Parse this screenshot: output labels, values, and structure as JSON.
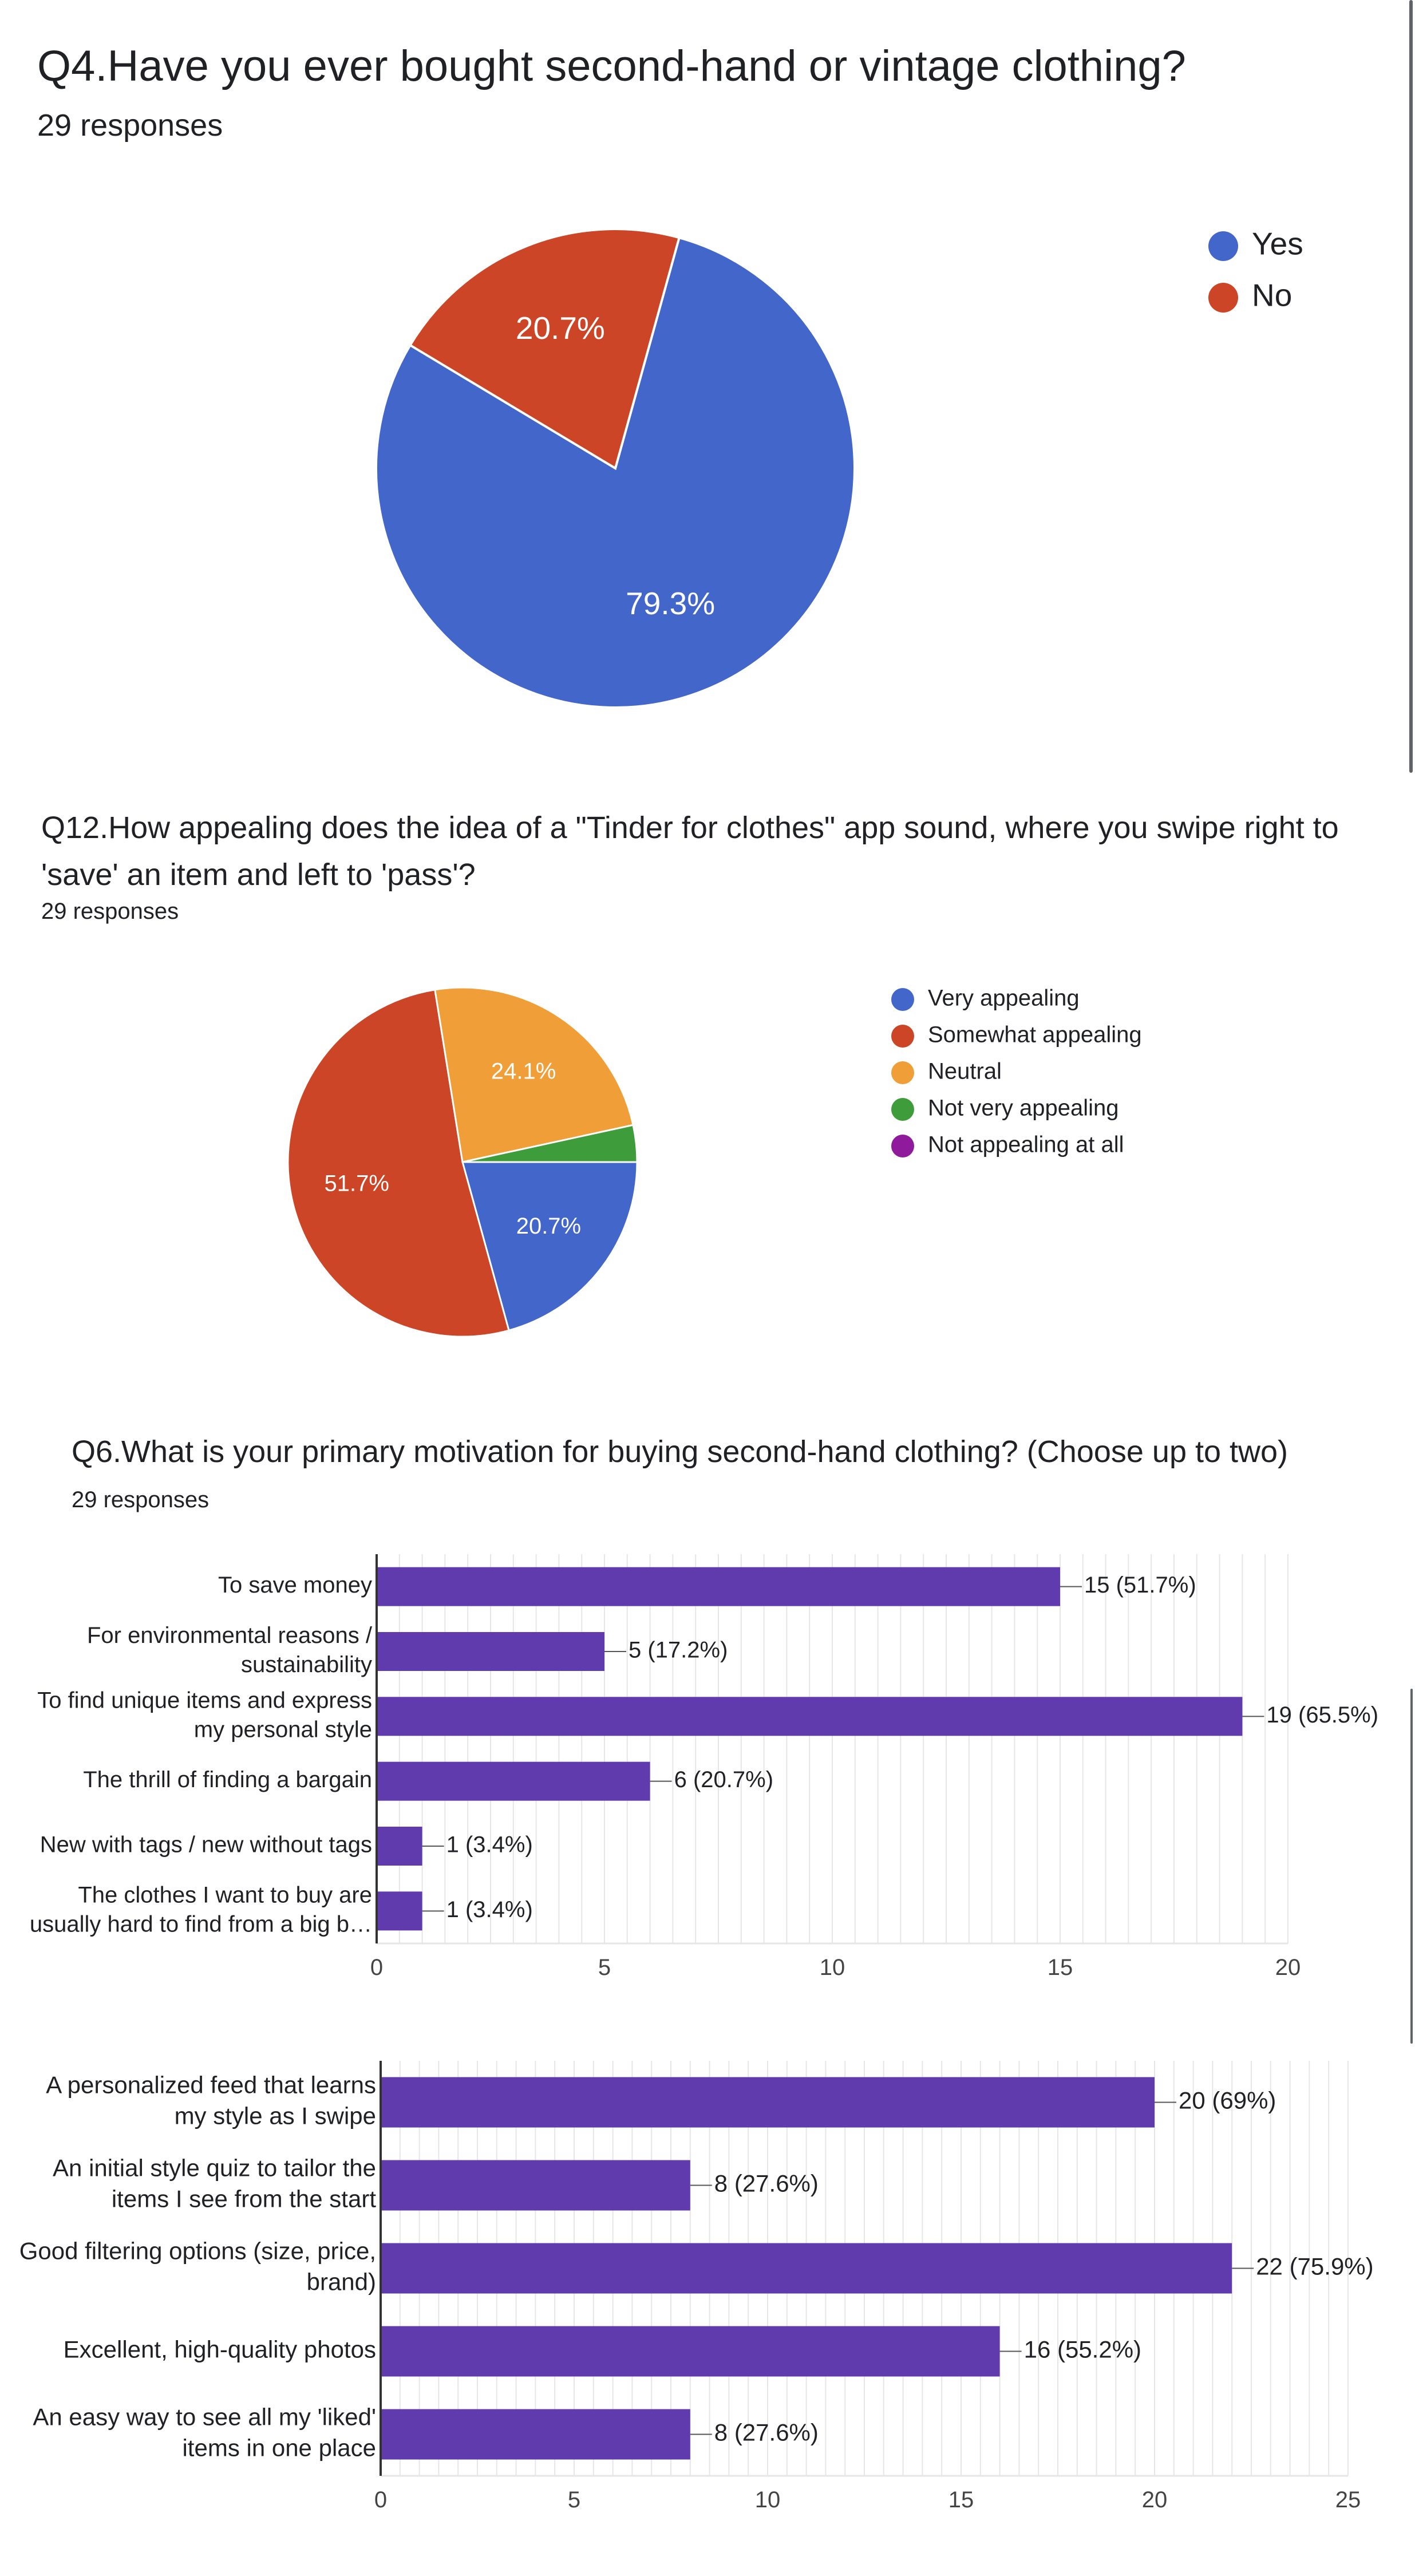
{
  "q4": {
    "title": "Q4.Have you ever bought second-hand or vintage clothing?",
    "responses": "29 responses"
  },
  "q12": {
    "title": "Q12.How appealing does the idea of a \"Tinder for clothes\" app sound, where you swipe right to 'save' an item and left to 'pass'?",
    "responses": "29 responses"
  },
  "q6": {
    "title": "Q6.What is your primary motivation for buying second-hand clothing? (Choose up to two)",
    "responses": "29 responses"
  },
  "colors": {
    "blue": "#4266c9",
    "red": "#cc4526",
    "orange": "#f09e38",
    "green": "#3f9c3a",
    "purple": "#8f1a9b",
    "bar": "#603bae",
    "grid": "#e6e6e6"
  },
  "chart_data": [
    {
      "type": "pie",
      "labels": [
        "Yes",
        "No"
      ],
      "values": [
        79.3,
        20.7
      ],
      "label_text": [
        "79.3%",
        "20.7%"
      ],
      "colors": [
        "#4266c9",
        "#cc4526"
      ],
      "legend": "top-right"
    },
    {
      "type": "pie",
      "labels": [
        "Very appealing",
        "Somewhat appealing",
        "Neutral",
        "Not very appealing",
        "Not appealing at all"
      ],
      "values": [
        20.7,
        51.7,
        24.1,
        3.4,
        0
      ],
      "label_text": [
        "20.7%",
        "51.7%",
        "24.1%",
        "",
        ""
      ],
      "colors": [
        "#4266c9",
        "#cc4526",
        "#f09e38",
        "#3f9c3a",
        "#8f1a9b"
      ],
      "legend": "top-right"
    },
    {
      "type": "bar",
      "orientation": "horizontal",
      "categories": [
        [
          "To save money"
        ],
        [
          "For environmental reasons /",
          "sustainability"
        ],
        [
          "To find unique items and express",
          "my personal style"
        ],
        [
          "The thrill of finding a bargain"
        ],
        [
          "New with tags / new without tags"
        ],
        [
          "The clothes I want to buy are",
          "usually hard to find from a big b…"
        ]
      ],
      "values": [
        15,
        5,
        19,
        6,
        1,
        1
      ],
      "data_labels": [
        "15 (51.7%)",
        "5 (17.2%)",
        "19 (65.5%)",
        "6 (20.7%)",
        "1 (3.4%)",
        "1 (3.4%)"
      ],
      "xlim": [
        0,
        20
      ],
      "xticks": [
        "0",
        "5",
        "10",
        "15",
        "20"
      ],
      "grid": true
    },
    {
      "type": "bar",
      "orientation": "horizontal",
      "categories": [
        [
          "A personalized feed that learns",
          "my style as I swipe"
        ],
        [
          "An initial style quiz to tailor the",
          "items I see from the start"
        ],
        [
          "Good filtering options (size, price,",
          "brand)"
        ],
        [
          "Excellent, high-quality photos"
        ],
        [
          "An easy way to see all my 'liked'",
          "items in one place"
        ]
      ],
      "values": [
        20,
        8,
        22,
        16,
        8
      ],
      "data_labels": [
        "20 (69%)",
        "8 (27.6%)",
        "22 (75.9%)",
        "16 (55.2%)",
        "8 (27.6%)"
      ],
      "xlim": [
        0,
        25
      ],
      "xticks": [
        "0",
        "5",
        "10",
        "15",
        "20",
        "25"
      ],
      "grid": true
    }
  ]
}
